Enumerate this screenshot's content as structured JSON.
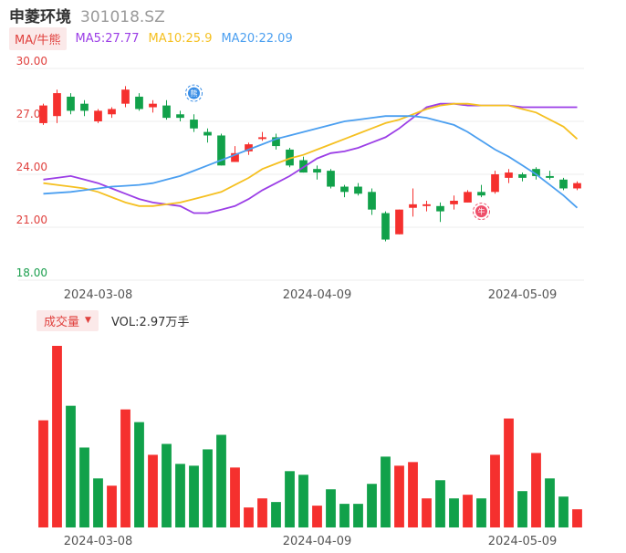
{
  "header": {
    "name": "申菱环境",
    "code": "301018.SZ"
  },
  "ma_legend": {
    "toggle_label": "MA/牛熊",
    "items": [
      {
        "label": "MA5:27.77",
        "color": "#9b3ee6"
      },
      {
        "label": "MA10:25.9",
        "color": "#f5c021"
      },
      {
        "label": "MA20:22.09",
        "color": "#4b9ff0"
      }
    ]
  },
  "volume_header": {
    "toggle_label": "成交量",
    "value_label": "VOL:2.97万手"
  },
  "colors": {
    "up": "#f5302e",
    "down": "#11a14a",
    "grid": "#ececec",
    "axis_red": "#e0413e",
    "axis_green": "#1a9e4d"
  },
  "chart_data": [
    {
      "type": "candlestick",
      "y_ticks": [
        "30.00",
        "27.00",
        "24.00",
        "21.00",
        "18.00"
      ],
      "ylim": [
        18,
        30
      ],
      "x_tick_labels": [
        "2024-03-08",
        "2024-04-09",
        "2024-05-09"
      ],
      "x_tick_indices": [
        4,
        20,
        35
      ],
      "markers": [
        {
          "label": "熊",
          "index": 11,
          "price": 28.6,
          "color": "#3a8ee6"
        },
        {
          "label": "牛",
          "index": 32,
          "price": 21.9,
          "color": "#ee4f6a"
        }
      ],
      "candles": [
        {
          "open": 26.9,
          "close": 27.9,
          "high": 28.0,
          "low": 26.8
        },
        {
          "open": 27.3,
          "close": 28.6,
          "high": 28.8,
          "low": 26.9
        },
        {
          "open": 28.4,
          "close": 27.6,
          "high": 28.6,
          "low": 27.4
        },
        {
          "open": 28.0,
          "close": 27.6,
          "high": 28.2,
          "low": 27.3
        },
        {
          "open": 27.0,
          "close": 27.6,
          "high": 27.7,
          "low": 26.9
        },
        {
          "open": 27.4,
          "close": 27.7,
          "high": 27.8,
          "low": 27.2
        },
        {
          "open": 28.0,
          "close": 28.8,
          "high": 29.0,
          "low": 27.8
        },
        {
          "open": 28.4,
          "close": 27.7,
          "high": 28.6,
          "low": 27.6
        },
        {
          "open": 27.8,
          "close": 28.0,
          "high": 28.2,
          "low": 27.5
        },
        {
          "open": 27.9,
          "close": 27.2,
          "high": 28.2,
          "low": 27.1
        },
        {
          "open": 27.4,
          "close": 27.2,
          "high": 27.6,
          "low": 27.0
        },
        {
          "open": 27.1,
          "close": 26.6,
          "high": 27.4,
          "low": 26.4
        },
        {
          "open": 26.4,
          "close": 26.2,
          "high": 26.6,
          "low": 25.8
        },
        {
          "open": 26.2,
          "close": 24.5,
          "high": 26.3,
          "low": 24.5
        },
        {
          "open": 24.7,
          "close": 25.2,
          "high": 25.6,
          "low": 24.7
        },
        {
          "open": 25.3,
          "close": 25.7,
          "high": 25.8,
          "low": 25.1
        },
        {
          "open": 26.0,
          "close": 26.1,
          "high": 26.4,
          "low": 25.9
        },
        {
          "open": 26.1,
          "close": 25.6,
          "high": 26.3,
          "low": 25.4
        },
        {
          "open": 25.4,
          "close": 24.5,
          "high": 25.5,
          "low": 24.4
        },
        {
          "open": 24.8,
          "close": 24.1,
          "high": 25.0,
          "low": 24.1
        },
        {
          "open": 24.3,
          "close": 24.1,
          "high": 24.5,
          "low": 23.7
        },
        {
          "open": 24.2,
          "close": 23.3,
          "high": 24.3,
          "low": 23.2
        },
        {
          "open": 23.3,
          "close": 23.0,
          "high": 23.4,
          "low": 22.7
        },
        {
          "open": 23.3,
          "close": 22.9,
          "high": 23.5,
          "low": 22.8
        },
        {
          "open": 23.0,
          "close": 22.0,
          "high": 23.2,
          "low": 21.7
        },
        {
          "open": 21.8,
          "close": 20.3,
          "high": 21.9,
          "low": 20.2
        },
        {
          "open": 20.6,
          "close": 22.0,
          "high": 22.0,
          "low": 20.6
        },
        {
          "open": 22.1,
          "close": 22.3,
          "high": 23.2,
          "low": 21.6
        },
        {
          "open": 22.2,
          "close": 22.3,
          "high": 22.5,
          "low": 21.9
        },
        {
          "open": 22.2,
          "close": 21.9,
          "high": 22.4,
          "low": 21.3
        },
        {
          "open": 22.3,
          "close": 22.5,
          "high": 22.8,
          "low": 22.0
        },
        {
          "open": 22.4,
          "close": 23.0,
          "high": 23.1,
          "low": 22.4
        },
        {
          "open": 23.0,
          "close": 22.8,
          "high": 23.4,
          "low": 22.7
        },
        {
          "open": 23.0,
          "close": 24.0,
          "high": 24.2,
          "low": 22.9
        },
        {
          "open": 23.8,
          "close": 24.1,
          "high": 24.3,
          "low": 23.5
        },
        {
          "open": 24.0,
          "close": 23.8,
          "high": 24.1,
          "low": 23.6
        },
        {
          "open": 24.3,
          "close": 23.9,
          "high": 24.4,
          "low": 23.7
        },
        {
          "open": 23.9,
          "close": 23.8,
          "high": 24.2,
          "low": 23.7
        },
        {
          "open": 23.7,
          "close": 23.2,
          "high": 23.8,
          "low": 23.1
        },
        {
          "open": 23.2,
          "close": 23.5,
          "high": 23.6,
          "low": 23.1
        }
      ],
      "series": [
        {
          "name": "MA5",
          "color": "#9b3ee6",
          "values": [
            23.7,
            23.8,
            23.9,
            23.7,
            23.5,
            23.2,
            22.9,
            22.6,
            22.4,
            22.3,
            22.2,
            21.8,
            21.8,
            22.0,
            22.2,
            22.6,
            23.1,
            23.5,
            23.9,
            24.4,
            24.9,
            25.2,
            25.3,
            25.5,
            25.8,
            26.1,
            26.6,
            27.2,
            27.8,
            28.0,
            28.0,
            27.9,
            27.9,
            27.9,
            27.9,
            27.8,
            27.8,
            27.8,
            27.8,
            27.8
          ]
        },
        {
          "name": "MA10",
          "color": "#f5c021",
          "values": [
            23.5,
            23.4,
            23.3,
            23.2,
            23.0,
            22.7,
            22.4,
            22.2,
            22.2,
            22.3,
            22.4,
            22.6,
            22.8,
            23.0,
            23.4,
            23.8,
            24.3,
            24.6,
            24.9,
            25.1,
            25.4,
            25.7,
            26.0,
            26.3,
            26.6,
            26.9,
            27.1,
            27.4,
            27.7,
            27.9,
            28.0,
            28.0,
            27.9,
            27.9,
            27.9,
            27.7,
            27.5,
            27.1,
            26.7,
            26.0
          ]
        },
        {
          "name": "MA20",
          "color": "#4b9ff0",
          "values": [
            22.9,
            22.95,
            23.0,
            23.1,
            23.2,
            23.3,
            23.35,
            23.4,
            23.5,
            23.7,
            23.9,
            24.2,
            24.5,
            24.8,
            25.1,
            25.4,
            25.7,
            26.0,
            26.2,
            26.4,
            26.6,
            26.8,
            27.0,
            27.1,
            27.2,
            27.3,
            27.3,
            27.3,
            27.2,
            27.0,
            26.8,
            26.4,
            25.9,
            25.4,
            25.0,
            24.5,
            24.0,
            23.4,
            22.8,
            22.1
          ]
        }
      ]
    },
    {
      "type": "bar",
      "title": "成交量",
      "x_tick_labels": [
        "2024-03-08",
        "2024-04-09",
        "2024-05-09"
      ],
      "x_tick_indices": [
        4,
        20,
        35
      ],
      "ylim": [
        0,
        10
      ],
      "bars": [
        {
          "value": 5.9,
          "dir": "up"
        },
        {
          "value": 10.0,
          "dir": "up"
        },
        {
          "value": 6.7,
          "dir": "down"
        },
        {
          "value": 4.4,
          "dir": "down"
        },
        {
          "value": 2.7,
          "dir": "down"
        },
        {
          "value": 2.3,
          "dir": "up"
        },
        {
          "value": 6.5,
          "dir": "up"
        },
        {
          "value": 5.8,
          "dir": "down"
        },
        {
          "value": 4.0,
          "dir": "up"
        },
        {
          "value": 4.6,
          "dir": "down"
        },
        {
          "value": 3.5,
          "dir": "down"
        },
        {
          "value": 3.4,
          "dir": "down"
        },
        {
          "value": 4.3,
          "dir": "down"
        },
        {
          "value": 5.1,
          "dir": "down"
        },
        {
          "value": 3.3,
          "dir": "up"
        },
        {
          "value": 1.1,
          "dir": "up"
        },
        {
          "value": 1.6,
          "dir": "up"
        },
        {
          "value": 1.4,
          "dir": "down"
        },
        {
          "value": 3.1,
          "dir": "down"
        },
        {
          "value": 2.9,
          "dir": "down"
        },
        {
          "value": 1.2,
          "dir": "up"
        },
        {
          "value": 2.1,
          "dir": "down"
        },
        {
          "value": 1.3,
          "dir": "down"
        },
        {
          "value": 1.3,
          "dir": "down"
        },
        {
          "value": 2.4,
          "dir": "down"
        },
        {
          "value": 3.9,
          "dir": "down"
        },
        {
          "value": 3.4,
          "dir": "up"
        },
        {
          "value": 3.6,
          "dir": "up"
        },
        {
          "value": 1.6,
          "dir": "up"
        },
        {
          "value": 2.6,
          "dir": "down"
        },
        {
          "value": 1.6,
          "dir": "down"
        },
        {
          "value": 1.8,
          "dir": "up"
        },
        {
          "value": 1.6,
          "dir": "down"
        },
        {
          "value": 4.0,
          "dir": "up"
        },
        {
          "value": 6.0,
          "dir": "up"
        },
        {
          "value": 2.0,
          "dir": "down"
        },
        {
          "value": 4.1,
          "dir": "up"
        },
        {
          "value": 2.7,
          "dir": "down"
        },
        {
          "value": 1.7,
          "dir": "down"
        },
        {
          "value": 1.0,
          "dir": "up"
        }
      ]
    }
  ]
}
